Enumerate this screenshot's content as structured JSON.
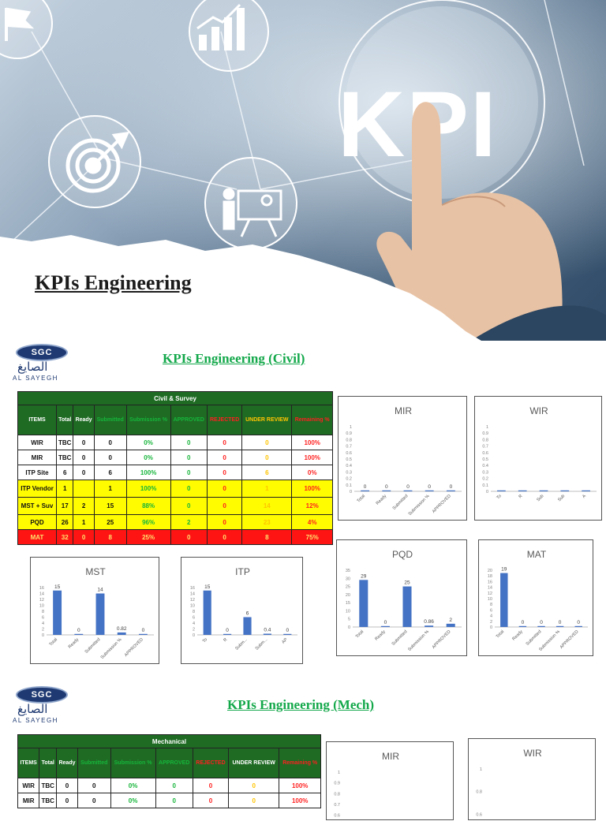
{
  "hero": {
    "title": "KPIs Engineering",
    "banner_text": "KPI",
    "icons": [
      "flag-icon",
      "bar-growth-icon",
      "target-icon",
      "presentation-icon",
      "people-icon"
    ]
  },
  "logo": {
    "mark": "SGC",
    "arabic": "الصايغ",
    "english": "AL SAYEGH"
  },
  "sections": {
    "civil": {
      "title": "KPIs Engineering (Civil)"
    },
    "mech": {
      "title": "KPIs Engineering (Mech)"
    }
  },
  "colors": {
    "header_green": "#1f6b24",
    "bar_blue": "#4472c4",
    "row_yellow": "#fffc00",
    "row_red": "#ff1414",
    "title_green": "#13a84a"
  },
  "civil_table": {
    "caption": "Civil & Survey",
    "headers": [
      "ITEMS",
      "Total",
      "Ready",
      "Submitted",
      "Submission %",
      "APPROVED",
      "REJECTED",
      "UNDER REVIEW",
      "Remaining %"
    ],
    "header_colors": [
      "white",
      "white",
      "white",
      "green",
      "green",
      "green",
      "red",
      "yellow",
      "red"
    ],
    "rows": [
      {
        "style": "white",
        "cells": [
          "WIR",
          "TBC",
          "0",
          "0",
          "0%",
          "0",
          "0",
          "0",
          "100%"
        ]
      },
      {
        "style": "white",
        "cells": [
          "MIR",
          "TBC",
          "0",
          "0",
          "0%",
          "0",
          "0",
          "0",
          "100%"
        ]
      },
      {
        "style": "white",
        "cells": [
          "ITP Site",
          "6",
          "0",
          "6",
          "100%",
          "0",
          "0",
          "6",
          "0%"
        ]
      },
      {
        "style": "yellow",
        "cells": [
          "ITP Vendor",
          "1",
          "",
          "1",
          "100%",
          "0",
          "0",
          "1",
          "100%"
        ]
      },
      {
        "style": "yellow",
        "cells": [
          "MST + Suv",
          "17",
          "2",
          "15",
          "88%",
          "0",
          "0",
          "14",
          "12%"
        ]
      },
      {
        "style": "yellow",
        "cells": [
          "PQD",
          "26",
          "1",
          "25",
          "96%",
          "2",
          "0",
          "23",
          "4%"
        ]
      },
      {
        "style": "red",
        "cells": [
          "MAT",
          "32",
          "0",
          "8",
          "25%",
          "0",
          "0",
          "8",
          "75%"
        ]
      }
    ]
  },
  "mech_table": {
    "caption": "Mechanical",
    "headers": [
      "ITEMS",
      "Total",
      "Ready",
      "Submitted",
      "Submission %",
      "APPROVED",
      "REJECTED",
      "UNDER REVIEW",
      "Remaining %"
    ],
    "header_colors": [
      "white",
      "white",
      "white",
      "green",
      "green",
      "green",
      "red",
      "white",
      "red"
    ],
    "rows": [
      {
        "style": "white",
        "cells": [
          "WIR",
          "TBC",
          "0",
          "0",
          "0%",
          "0",
          "0",
          "0",
          "100%"
        ]
      },
      {
        "style": "white",
        "cells": [
          "MIR",
          "TBC",
          "0",
          "0",
          "0%",
          "0",
          "0",
          "0",
          "100%"
        ]
      }
    ]
  },
  "chart_data": [
    {
      "id": "civil-mir",
      "type": "bar",
      "title": "MIR",
      "categories": [
        "Total",
        "Ready",
        "Submitted",
        "Submission %",
        "APPROVED"
      ],
      "values": [
        0,
        0,
        0,
        0,
        0
      ],
      "labels": [
        "0",
        "0",
        "0",
        "0",
        "0"
      ],
      "ylim": [
        0,
        1
      ],
      "yticks": [
        "0",
        "0.1",
        "0.2",
        "0.3",
        "0.4",
        "0.5",
        "0.6",
        "0.7",
        "0.8",
        "0.9",
        "1"
      ]
    },
    {
      "id": "civil-wir",
      "type": "bar",
      "title": "WIR",
      "categories": [
        "To",
        "R",
        "Sub",
        "Sub",
        "A"
      ],
      "values": [
        0,
        0,
        0,
        0,
        0
      ],
      "labels": [],
      "ylim": [
        0,
        1
      ],
      "yticks": [
        "0",
        "0.1",
        "0.2",
        "0.3",
        "0.4",
        "0.5",
        "0.6",
        "0.7",
        "0.8",
        "0.9",
        "1"
      ]
    },
    {
      "id": "civil-mst",
      "type": "bar",
      "title": "MST",
      "categories": [
        "Total",
        "Ready",
        "Submitted",
        "Submission %",
        "APPROVED"
      ],
      "values": [
        15,
        0,
        14,
        0.82,
        0
      ],
      "labels": [
        "15",
        "0",
        "14",
        "0.82",
        "0"
      ],
      "ylim": [
        0,
        16
      ],
      "yticks": [
        "0",
        "2",
        "4",
        "6",
        "8",
        "10",
        "12",
        "14",
        "16"
      ]
    },
    {
      "id": "civil-itp",
      "type": "bar",
      "title": "ITP",
      "categories": [
        "To",
        "R",
        "Subm...",
        "Subm...",
        "AP"
      ],
      "values": [
        15,
        0,
        6,
        0.4,
        0
      ],
      "labels": [
        "15",
        "0",
        "6",
        "0.4",
        "0"
      ],
      "ylim": [
        0,
        16
      ],
      "yticks": [
        "0",
        "2",
        "4",
        "6",
        "8",
        "10",
        "12",
        "14",
        "16"
      ]
    },
    {
      "id": "civil-pqd",
      "type": "bar",
      "title": "PQD",
      "categories": [
        "Total",
        "Ready",
        "Submitted",
        "Submission %",
        "APPROVED"
      ],
      "values": [
        29,
        0,
        25,
        0.86,
        2
      ],
      "labels": [
        "29",
        "0",
        "25",
        "0.86",
        "2"
      ],
      "ylim": [
        0,
        35
      ],
      "yticks": [
        "0",
        "5",
        "10",
        "15",
        "20",
        "25",
        "30",
        "35"
      ]
    },
    {
      "id": "civil-mat",
      "type": "bar",
      "title": "MAT",
      "categories": [
        "Total",
        "Ready",
        "Submitted",
        "Submission %",
        "APPROVED"
      ],
      "values": [
        19,
        0,
        0,
        0,
        0
      ],
      "labels": [
        "19",
        "0",
        "0",
        "0",
        "0"
      ],
      "ylim": [
        0,
        20
      ],
      "yticks": [
        "0",
        "2",
        "4",
        "6",
        "8",
        "10",
        "12",
        "14",
        "16",
        "18",
        "20"
      ]
    },
    {
      "id": "mech-mir",
      "type": "bar",
      "title": "MIR",
      "categories": [],
      "values": [],
      "labels": [],
      "ylim": [
        0.4,
        1
      ],
      "yticks": [
        "0.4",
        "0.5",
        "0.6",
        "0.7",
        "0.8",
        "0.9",
        "1"
      ]
    },
    {
      "id": "mech-wir",
      "type": "bar",
      "title": "WIR",
      "categories": [],
      "values": [],
      "labels": [],
      "ylim": [
        0.4,
        1
      ],
      "yticks": [
        "0.4",
        "0.6",
        "0.8",
        "1"
      ]
    }
  ]
}
